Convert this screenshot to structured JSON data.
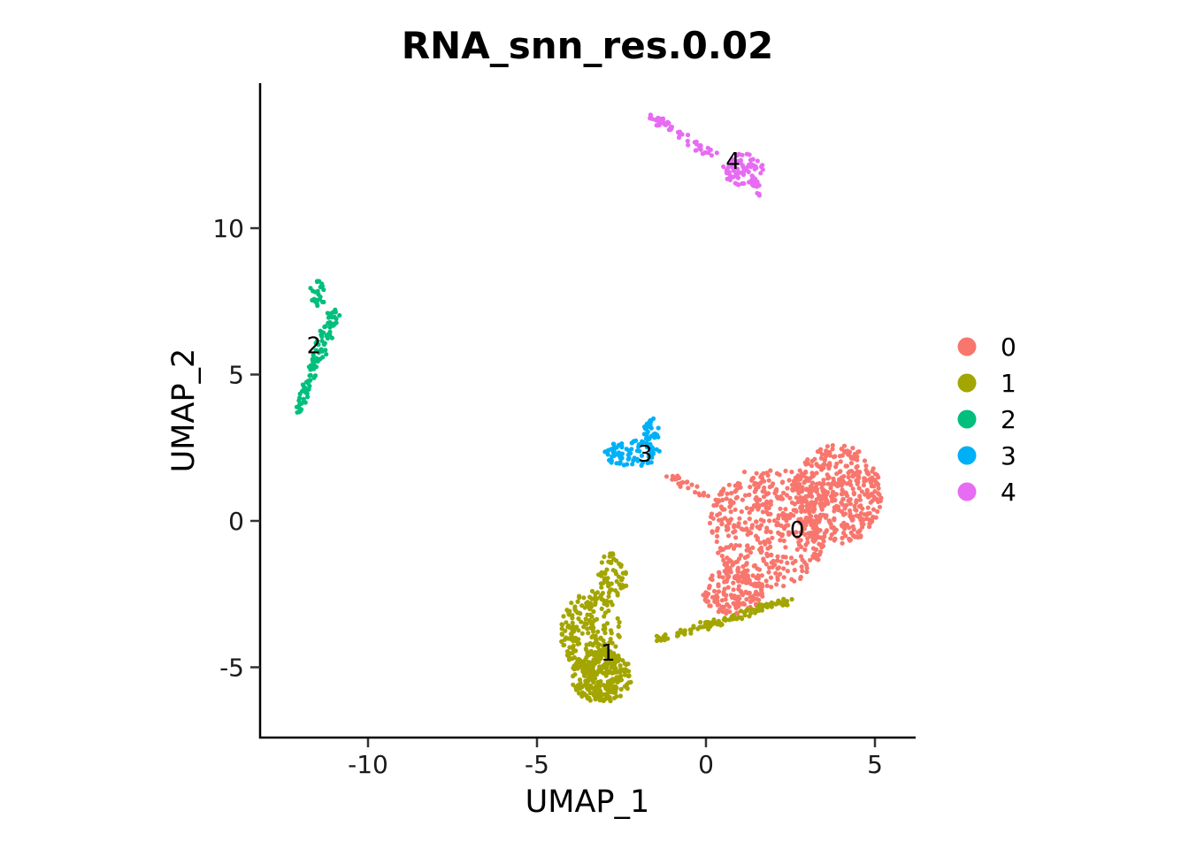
{
  "chart_data": {
    "type": "scatter",
    "title": "RNA_snn_res.0.02",
    "xlabel": "UMAP_1",
    "ylabel": "UMAP_2",
    "xlim": [
      -13.2,
      6.2
    ],
    "ylim": [
      -7.4,
      15.0
    ],
    "xticks": [
      -10,
      -5,
      0,
      5
    ],
    "xtick_labels": [
      "-10",
      "-5",
      "0",
      "5"
    ],
    "yticks": [
      -5,
      0,
      5,
      10
    ],
    "ytick_labels": [
      "-5",
      "0",
      "5",
      "10"
    ],
    "grid": false,
    "legend_position": "right",
    "series": [
      {
        "name": "0",
        "color": "#F8766D",
        "label_pos": [
          2.7,
          -0.3
        ],
        "approx_cells": 1100,
        "regions": [
          {
            "kind": "ellipse",
            "cx": 3.9,
            "cy": 0.9,
            "rx": 1.3,
            "ry": 1.7,
            "n": 420
          },
          {
            "kind": "ellipse",
            "cx": 1.9,
            "cy": -0.2,
            "rx": 1.8,
            "ry": 2.1,
            "n": 450
          },
          {
            "kind": "ellipse",
            "cx": 0.8,
            "cy": -2.4,
            "rx": 0.9,
            "ry": 0.8,
            "n": 150
          },
          {
            "kind": "line",
            "x0": -1.2,
            "y0": 1.6,
            "x1": 0.2,
            "y1": 0.8,
            "spread": 0.12,
            "n": 25
          }
        ]
      },
      {
        "name": "1",
        "color": "#A3A500",
        "label_pos": [
          -2.9,
          -4.5
        ],
        "approx_cells": 620,
        "regions": [
          {
            "kind": "ellipse",
            "cx": -3.1,
            "cy": -5.3,
            "rx": 0.9,
            "ry": 0.9,
            "n": 260
          },
          {
            "kind": "ellipse",
            "cx": -3.4,
            "cy": -3.8,
            "rx": 0.9,
            "ry": 1.4,
            "n": 210
          },
          {
            "kind": "ellipse",
            "cx": -2.8,
            "cy": -2.0,
            "rx": 0.45,
            "ry": 0.9,
            "n": 60
          },
          {
            "kind": "line",
            "x0": -1.5,
            "y0": -4.1,
            "x1": 2.5,
            "y1": -2.7,
            "spread": 0.13,
            "n": 110
          }
        ]
      },
      {
        "name": "2",
        "color": "#00BF7D",
        "label_pos": [
          -11.6,
          6.0
        ],
        "approx_cells": 130,
        "regions": [
          {
            "kind": "line",
            "x0": -12.1,
            "y0": 3.7,
            "x1": -11.5,
            "y1": 5.6,
            "spread": 0.13,
            "n": 55
          },
          {
            "kind": "line",
            "x0": -11.5,
            "y0": 5.6,
            "x1": -11.0,
            "y1": 7.1,
            "spread": 0.18,
            "n": 50
          },
          {
            "kind": "ellipse",
            "cx": -11.5,
            "cy": 7.7,
            "rx": 0.25,
            "ry": 0.5,
            "n": 25
          }
        ]
      },
      {
        "name": "3",
        "color": "#00B0F6",
        "label_pos": [
          -1.8,
          2.3
        ],
        "approx_cells": 110,
        "regions": [
          {
            "kind": "ellipse",
            "cx": -2.2,
            "cy": 2.3,
            "rx": 0.85,
            "ry": 0.45,
            "n": 80
          },
          {
            "kind": "ellipse",
            "cx": -1.6,
            "cy": 3.1,
            "rx": 0.25,
            "ry": 0.4,
            "n": 30
          }
        ]
      },
      {
        "name": "4",
        "color": "#E76BF3",
        "label_pos": [
          0.8,
          12.3
        ],
        "approx_cells": 140,
        "regions": [
          {
            "kind": "line",
            "x0": -1.6,
            "y0": 13.8,
            "x1": 0.2,
            "y1": 12.5,
            "spread": 0.14,
            "n": 55
          },
          {
            "kind": "ellipse",
            "cx": 1.1,
            "cy": 12.0,
            "rx": 0.6,
            "ry": 0.55,
            "n": 70
          },
          {
            "kind": "line",
            "x0": 1.4,
            "y0": 11.7,
            "x1": 1.6,
            "y1": 11.1,
            "spread": 0.1,
            "n": 15
          }
        ]
      }
    ]
  }
}
